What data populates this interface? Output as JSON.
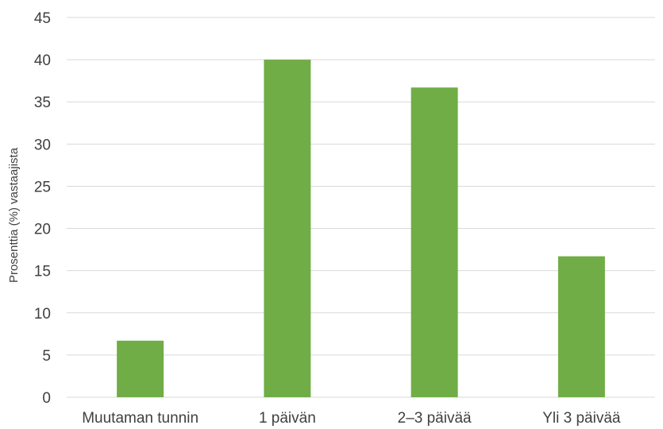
{
  "chart_data": {
    "type": "bar",
    "title": "",
    "xlabel": "",
    "ylabel": "Prosenttia (%) vastaajista",
    "categories": [
      "Muutaman tunnin",
      "1 päivän",
      "2–3 päivää",
      "Yli 3 päivää"
    ],
    "values": [
      6.7,
      40,
      36.7,
      16.7
    ],
    "ylim": [
      0,
      45
    ],
    "yticks": [
      0,
      5,
      10,
      15,
      20,
      25,
      30,
      35,
      40,
      45
    ],
    "grid": true,
    "legend": "none",
    "colors": {
      "bar": "#70AD47",
      "grid": "#D9D9D9",
      "text": "#404040"
    }
  }
}
